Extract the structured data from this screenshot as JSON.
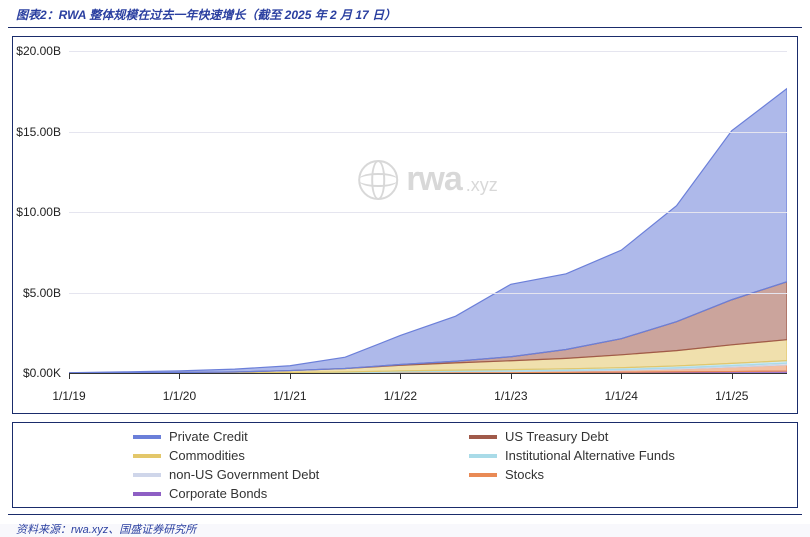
{
  "title_color": "#2a3fa0",
  "title_text": "图表2：RWA 整体规模在过去一年快速增长（截至 2025 年 2 月 17 日）",
  "source_color": "#2a3fa0",
  "source_text": "资料来源：rwa.xyz、国盛证券研究所",
  "watermark_main": "rwa",
  "watermark_sub": ".xyz",
  "chart": {
    "type": "stacked-area",
    "ymax": 20,
    "ymin": 0,
    "y_ticks": [
      {
        "v": 0,
        "label": "$0.00K"
      },
      {
        "v": 5,
        "label": "$5.00B"
      },
      {
        "v": 10,
        "label": "$10.00B"
      },
      {
        "v": 15,
        "label": "$15.00B"
      },
      {
        "v": 20,
        "label": "$20.00B"
      }
    ],
    "x_points": [
      "1/1/19",
      "7/1/19",
      "1/1/20",
      "7/1/20",
      "1/1/21",
      "7/1/21",
      "1/1/22",
      "7/1/22",
      "1/1/23",
      "7/1/23",
      "1/1/24",
      "7/1/24",
      "1/1/25",
      "2/17/25"
    ],
    "x_tick_labels": [
      "1/1/19",
      "1/1/20",
      "1/1/21",
      "1/1/22",
      "1/1/23",
      "1/1/24",
      "1/1/25"
    ],
    "x_tick_indices": [
      0,
      2,
      4,
      6,
      8,
      10,
      12
    ],
    "grid_color": "#e5e5ef",
    "axis_color": "#333333",
    "label_fontsize": 12,
    "series": [
      {
        "name": "Corporate Bonds",
        "color": "#8e5fc4",
        "v": [
          0.0,
          0.0,
          0.0,
          0.0,
          0.0,
          0.0,
          0.02,
          0.03,
          0.03,
          0.04,
          0.05,
          0.07,
          0.09,
          0.12
        ]
      },
      {
        "name": "Stocks",
        "color": "#e98a55",
        "v": [
          0.0,
          0.0,
          0.0,
          0.0,
          0.01,
          0.02,
          0.04,
          0.05,
          0.06,
          0.08,
          0.12,
          0.18,
          0.28,
          0.38
        ]
      },
      {
        "name": "non-US Government Debt",
        "color": "#cfd6ea",
        "v": [
          0.0,
          0.0,
          0.0,
          0.0,
          0.0,
          0.0,
          0.01,
          0.02,
          0.03,
          0.04,
          0.05,
          0.07,
          0.09,
          0.11
        ]
      },
      {
        "name": "Institutional Alternative Funds",
        "color": "#a9dbe8",
        "v": [
          0.0,
          0.0,
          0.0,
          0.0,
          0.02,
          0.04,
          0.06,
          0.08,
          0.09,
          0.1,
          0.11,
          0.12,
          0.14,
          0.16
        ]
      },
      {
        "name": "Commodities",
        "color": "#e3c76a",
        "v": [
          0.0,
          0.01,
          0.03,
          0.06,
          0.12,
          0.22,
          0.35,
          0.45,
          0.55,
          0.65,
          0.8,
          0.95,
          1.15,
          1.3
        ]
      },
      {
        "name": "US Treasury Debt",
        "color": "#a05a4a",
        "v": [
          0.0,
          0.0,
          0.0,
          0.0,
          0.0,
          0.0,
          0.05,
          0.1,
          0.25,
          0.55,
          1.0,
          1.8,
          2.8,
          3.6
        ]
      },
      {
        "name": "Private Credit",
        "color": "#6b7fd9",
        "v": [
          0.02,
          0.06,
          0.1,
          0.18,
          0.3,
          0.7,
          1.8,
          2.8,
          4.5,
          4.7,
          5.5,
          7.2,
          10.5,
          12.0
        ]
      }
    ]
  },
  "legend_order": [
    {
      "label": "Private Credit",
      "color": "#6b7fd9"
    },
    {
      "label": "US Treasury Debt",
      "color": "#a05a4a"
    },
    {
      "label": "Commodities",
      "color": "#e3c76a"
    },
    {
      "label": "Institutional Alternative Funds",
      "color": "#a9dbe8"
    },
    {
      "label": "non-US Government Debt",
      "color": "#cfd6ea"
    },
    {
      "label": "Stocks",
      "color": "#e98a55"
    },
    {
      "label": "Corporate Bonds",
      "color": "#8e5fc4"
    }
  ]
}
